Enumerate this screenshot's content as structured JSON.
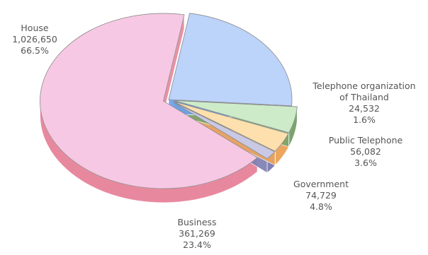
{
  "chart_data": {
    "type": "pie",
    "title": "",
    "slices": [
      {
        "label": "House",
        "value": 1026650,
        "value_text": "1,026,650",
        "percent": 66.5,
        "percent_text": "66.5%",
        "color": "#f7c8e3",
        "side_color": "#e8889e"
      },
      {
        "label": "Business",
        "value": 361269,
        "value_text": "361,269",
        "percent": 23.4,
        "percent_text": "23.4%",
        "color": "#bcd3fa",
        "side_color": "#6ea0ea"
      },
      {
        "label": "Government",
        "value": 74729,
        "value_text": "74,729",
        "percent": 4.8,
        "percent_text": "4.8%",
        "color": "#cdebc8",
        "side_color": "#79a56c"
      },
      {
        "label": "Public Telephone",
        "value": 56082,
        "value_text": "56,082",
        "percent": 3.6,
        "percent_text": "3.6%",
        "color": "#fde0ad",
        "side_color": "#eda65e"
      },
      {
        "label_lines": [
          "Telephone organization",
          "of Thailand"
        ],
        "value": 24532,
        "value_text": "24,532",
        "percent": 1.6,
        "percent_text": "1.6%",
        "color": "#c9c9e6",
        "side_color": "#8080b4"
      }
    ]
  }
}
